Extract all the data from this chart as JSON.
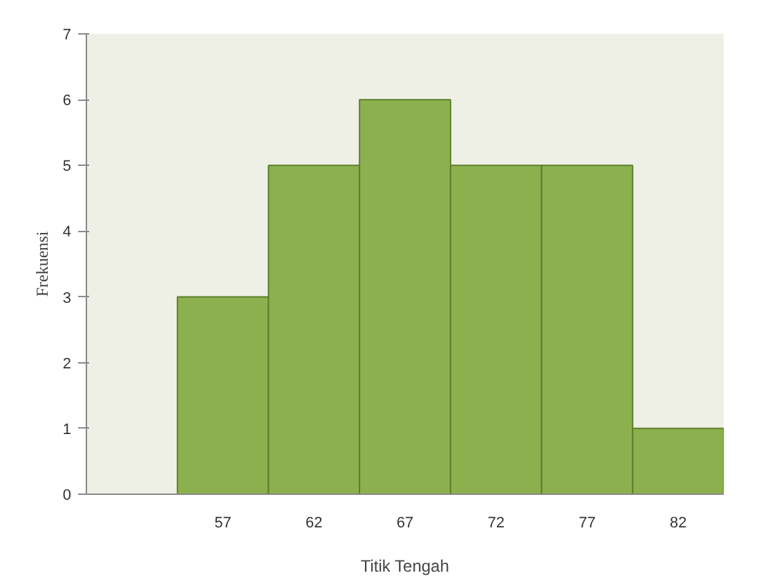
{
  "chart_data": {
    "type": "histogram",
    "xlabel": "Titik Tengah",
    "ylabel": "Frekuensi",
    "bins": [
      54.5,
      59.5,
      64.5,
      69.5,
      74.5,
      79.5,
      84.5
    ],
    "values": [
      3,
      5,
      6,
      5,
      5,
      1
    ],
    "color": "#8db04f",
    "xlim": [
      49.5,
      84.5
    ],
    "xticks": [
      57,
      62,
      67,
      72,
      77,
      82
    ],
    "ylim": [
      0,
      7
    ],
    "yticks": [
      0,
      1,
      2,
      3,
      4,
      5,
      6,
      7
    ],
    "grid": false
  }
}
